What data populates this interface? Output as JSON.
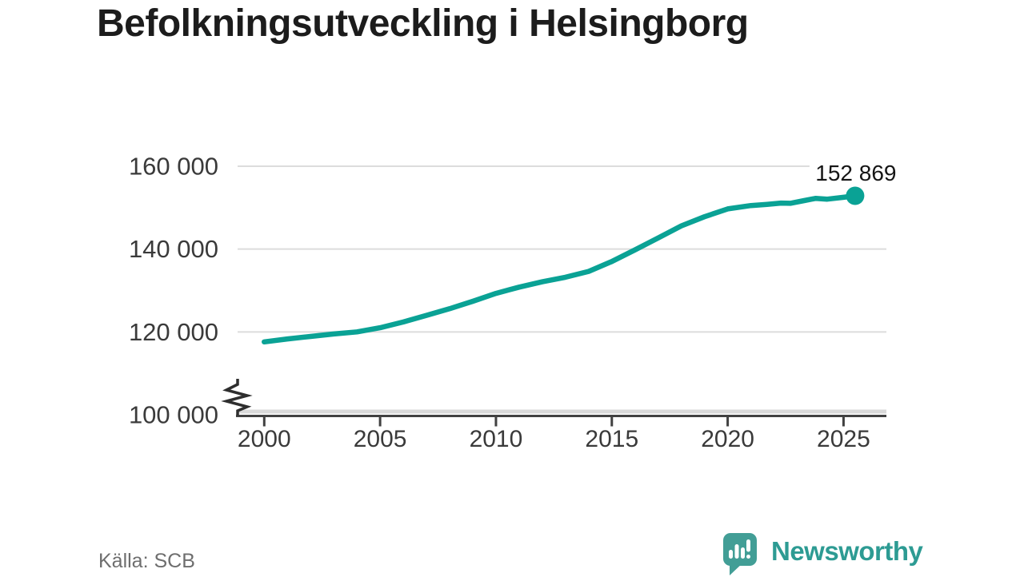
{
  "title": "Befolkningsutveckling i Helsingborg",
  "source": "Källa: SCB",
  "branding": {
    "logo_text": "Newsworthy",
    "logo_icon": "newsworthy-chart-bubble-icon"
  },
  "colors": {
    "title_text": "#1c1c1c",
    "tick_text": "#3a3a3a",
    "grid": "#dcdcdc",
    "axis_band": "#d9d9d9",
    "axis_line": "#414141",
    "break_glyph": "#2e2e2e",
    "line": "#0aa295",
    "end_label_text": "#151515",
    "source_text": "#6e6e6e",
    "brand_teal": "#2d9b93",
    "logo_bubble": "#429e96"
  },
  "chart_data": {
    "type": "line",
    "title": "Befolkningsutveckling i Helsingborg",
    "xlabel": "",
    "ylabel": "",
    "xlim": [
      1998.85,
      2026.85
    ],
    "ylim": [
      100000,
      163470
    ],
    "grid": "horizontal",
    "legend_position": "none",
    "y_axis_break": true,
    "x_ticks": [
      {
        "value": 2000,
        "label": "2000"
      },
      {
        "value": 2005,
        "label": "2005"
      },
      {
        "value": 2010,
        "label": "2010"
      },
      {
        "value": 2015,
        "label": "2015"
      },
      {
        "value": 2020,
        "label": "2020"
      },
      {
        "value": 2025,
        "label": "2025"
      }
    ],
    "y_ticks": [
      {
        "value": 100000,
        "label": "100 000"
      },
      {
        "value": 120000,
        "label": "120 000"
      },
      {
        "value": 140000,
        "label": "140 000"
      },
      {
        "value": 160000,
        "label": "160 000"
      }
    ],
    "end_label": "152 869",
    "end_value": 152869,
    "series": [
      {
        "name": "",
        "points": [
          [
            2000,
            117600
          ],
          [
            2001,
            118300
          ],
          [
            2002,
            118900
          ],
          [
            2003,
            119500
          ],
          [
            2004,
            120000
          ],
          [
            2005,
            121000
          ],
          [
            2006,
            122400
          ],
          [
            2007,
            124000
          ],
          [
            2008,
            125600
          ],
          [
            2009,
            127400
          ],
          [
            2010,
            129300
          ],
          [
            2011,
            130800
          ],
          [
            2012,
            132100
          ],
          [
            2013,
            133200
          ],
          [
            2014,
            134600
          ],
          [
            2015,
            137000
          ],
          [
            2016,
            139800
          ],
          [
            2017,
            142700
          ],
          [
            2018,
            145600
          ],
          [
            2019,
            147800
          ],
          [
            2020,
            149700
          ],
          [
            2021,
            150500
          ],
          [
            2021.7,
            150800
          ],
          [
            2022.3,
            151100
          ],
          [
            2022.7,
            151050
          ],
          [
            2023.3,
            151700
          ],
          [
            2023.8,
            152250
          ],
          [
            2024.3,
            152050
          ],
          [
            2025,
            152500
          ],
          [
            2025.5,
            152869
          ]
        ]
      }
    ]
  }
}
